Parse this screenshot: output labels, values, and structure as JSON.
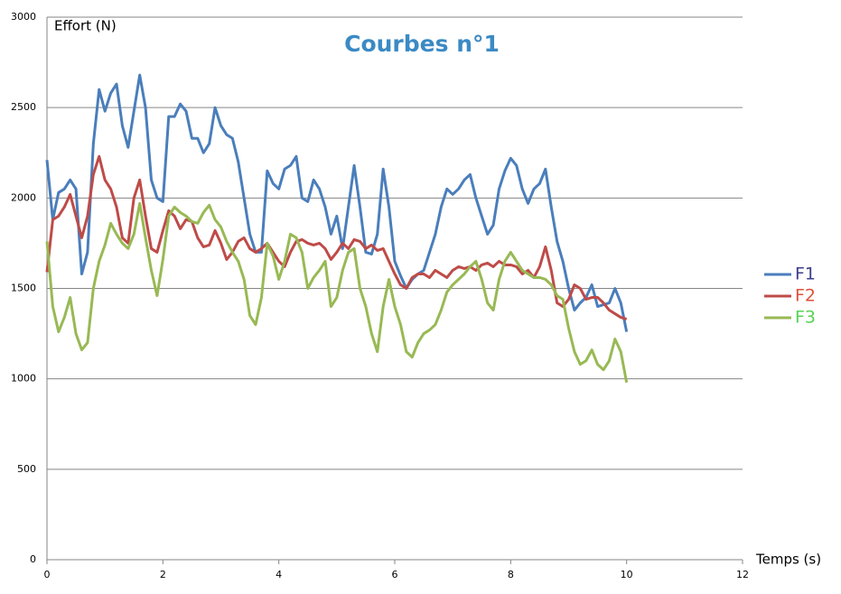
{
  "chart_data": {
    "type": "line",
    "title": "Courbes n°1",
    "ylabel": "Effort (N)",
    "xlabel": "Temps (s)",
    "x": [
      0,
      0.1,
      0.2,
      0.3,
      0.4,
      0.5,
      0.6,
      0.7,
      0.8,
      0.9,
      1,
      1.1,
      1.2,
      1.3,
      1.4,
      1.5,
      1.6,
      1.7,
      1.8,
      1.9,
      2,
      2.1,
      2.2,
      2.3,
      2.4,
      2.5,
      2.6,
      2.7,
      2.8,
      2.9,
      3,
      3.1,
      3.2,
      3.3,
      3.4,
      3.5,
      3.6,
      3.7,
      3.8,
      3.9,
      4,
      4.1,
      4.2,
      4.3,
      4.4,
      4.5,
      4.6,
      4.7,
      4.8,
      4.9,
      5,
      5.1,
      5.2,
      5.3,
      5.4,
      5.5,
      5.6,
      5.7,
      5.8,
      5.9,
      6,
      6.1,
      6.2,
      6.3,
      6.4,
      6.5,
      6.6,
      6.7,
      6.8,
      6.9,
      7,
      7.1,
      7.2,
      7.3,
      7.4,
      7.5,
      7.6,
      7.7,
      7.8,
      7.9,
      8,
      8.1,
      8.2,
      8.3,
      8.4,
      8.5,
      8.6,
      8.7,
      8.8,
      8.9,
      9,
      9.1,
      9.2,
      9.3,
      9.4,
      9.5,
      9.6,
      9.7,
      9.8,
      9.9,
      10
    ],
    "series": [
      {
        "name": "F1",
        "color": "#4a7ebb",
        "label_color": "#3e3e8e",
        "values": [
          2210,
          1880,
          2030,
          2050,
          2100,
          2050,
          1580,
          1700,
          2300,
          2600,
          2480,
          2580,
          2630,
          2400,
          2280,
          2480,
          2680,
          2500,
          2100,
          2000,
          1980,
          2450,
          2450,
          2520,
          2480,
          2330,
          2330,
          2250,
          2300,
          2500,
          2400,
          2350,
          2330,
          2200,
          2000,
          1800,
          1700,
          1700,
          2150,
          2080,
          2050,
          2160,
          2180,
          2230,
          2000,
          1980,
          2100,
          2050,
          1950,
          1800,
          1900,
          1720,
          1950,
          2180,
          1950,
          1700,
          1690,
          1800,
          2160,
          1950,
          1650,
          1570,
          1500,
          1550,
          1580,
          1600,
          1700,
          1800,
          1950,
          2050,
          2020,
          2050,
          2100,
          2130,
          2000,
          1900,
          1800,
          1850,
          2050,
          2150,
          2220,
          2180,
          2050,
          1970,
          2050,
          2080,
          2160,
          1950,
          1760,
          1650,
          1500,
          1380,
          1420,
          1450,
          1520,
          1400,
          1410,
          1420,
          1500,
          1420,
          1260
        ]
      },
      {
        "name": "F2",
        "color": "#be4b48",
        "label_color": "#e0503a",
        "values": [
          1590,
          1880,
          1900,
          1950,
          2020,
          1900,
          1780,
          1900,
          2130,
          2230,
          2100,
          2050,
          1950,
          1780,
          1750,
          2000,
          2100,
          1900,
          1720,
          1700,
          1820,
          1930,
          1900,
          1830,
          1880,
          1870,
          1780,
          1730,
          1740,
          1820,
          1750,
          1660,
          1700,
          1760,
          1780,
          1720,
          1700,
          1720,
          1750,
          1700,
          1650,
          1620,
          1700,
          1760,
          1770,
          1750,
          1740,
          1750,
          1720,
          1660,
          1700,
          1750,
          1720,
          1770,
          1760,
          1720,
          1740,
          1710,
          1720,
          1650,
          1580,
          1520,
          1500,
          1560,
          1580,
          1580,
          1560,
          1600,
          1580,
          1560,
          1600,
          1620,
          1610,
          1620,
          1600,
          1630,
          1640,
          1620,
          1650,
          1630,
          1630,
          1620,
          1580,
          1600,
          1560,
          1620,
          1730,
          1600,
          1420,
          1400,
          1440,
          1520,
          1500,
          1440,
          1450,
          1450,
          1420,
          1380,
          1360,
          1340,
          1330
        ]
      },
      {
        "name": "F3",
        "color": "#98b954",
        "label_color": "#55d455",
        "values": [
          1760,
          1400,
          1260,
          1340,
          1450,
          1250,
          1160,
          1200,
          1500,
          1650,
          1740,
          1860,
          1800,
          1750,
          1720,
          1800,
          1970,
          1780,
          1600,
          1460,
          1660,
          1900,
          1950,
          1920,
          1900,
          1870,
          1860,
          1920,
          1960,
          1880,
          1840,
          1760,
          1700,
          1650,
          1550,
          1350,
          1300,
          1450,
          1750,
          1680,
          1550,
          1650,
          1800,
          1780,
          1700,
          1500,
          1560,
          1600,
          1650,
          1400,
          1450,
          1600,
          1700,
          1720,
          1500,
          1400,
          1250,
          1150,
          1400,
          1550,
          1400,
          1300,
          1150,
          1120,
          1200,
          1250,
          1270,
          1300,
          1380,
          1480,
          1520,
          1550,
          1580,
          1620,
          1650,
          1550,
          1420,
          1380,
          1550,
          1650,
          1700,
          1650,
          1600,
          1580,
          1560,
          1560,
          1550,
          1520,
          1460,
          1440,
          1280,
          1150,
          1080,
          1100,
          1160,
          1080,
          1050,
          1100,
          1220,
          1150,
          980
        ]
      }
    ],
    "xlim": [
      0,
      12
    ],
    "xticks": [
      0,
      2,
      4,
      6,
      8,
      10,
      12
    ],
    "ylim": [
      0,
      3000
    ],
    "yticks": [
      0,
      500,
      1000,
      1500,
      2000,
      2500,
      3000
    ],
    "grid": true,
    "legend": "right"
  }
}
